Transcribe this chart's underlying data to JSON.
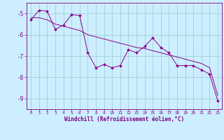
{
  "x_data": [
    0,
    1,
    2,
    3,
    4,
    5,
    6,
    7,
    8,
    9,
    10,
    11,
    12,
    13,
    14,
    15,
    16,
    17,
    18,
    19,
    20,
    21,
    22,
    23
  ],
  "line1_y": [
    -5.3,
    -4.85,
    -4.9,
    -5.75,
    -5.55,
    -5.05,
    -5.1,
    -6.85,
    -7.55,
    -7.4,
    -7.55,
    -7.45,
    -6.7,
    -6.85,
    -6.55,
    -6.15,
    -6.6,
    -6.85,
    -7.45,
    -7.45,
    -7.45,
    -7.65,
    -7.85,
    -9.1
  ],
  "line2_y": [
    -5.2,
    -5.2,
    -5.3,
    -5.5,
    -5.6,
    -5.7,
    -5.8,
    -6.0,
    -6.1,
    -6.2,
    -6.3,
    -6.4,
    -6.5,
    -6.6,
    -6.65,
    -6.75,
    -6.85,
    -6.95,
    -7.05,
    -7.15,
    -7.25,
    -7.35,
    -7.55,
    -8.85
  ],
  "line_color": "#8B008B",
  "bg_color": "#cceeff",
  "grid_color": "#99cccc",
  "axis_color": "#800080",
  "tick_color": "#800080",
  "xlabel": "Windchill (Refroidissement éolien,°C)",
  "ylim": [
    -9.5,
    -4.5
  ],
  "xlim": [
    -0.5,
    23.5
  ],
  "yticks": [
    -9,
    -8,
    -7,
    -6,
    -5
  ],
  "xticks": [
    0,
    1,
    2,
    3,
    4,
    5,
    6,
    7,
    8,
    9,
    10,
    11,
    12,
    13,
    14,
    15,
    16,
    17,
    18,
    19,
    20,
    21,
    22,
    23
  ],
  "figsize": [
    3.2,
    2.0
  ],
  "dpi": 100
}
